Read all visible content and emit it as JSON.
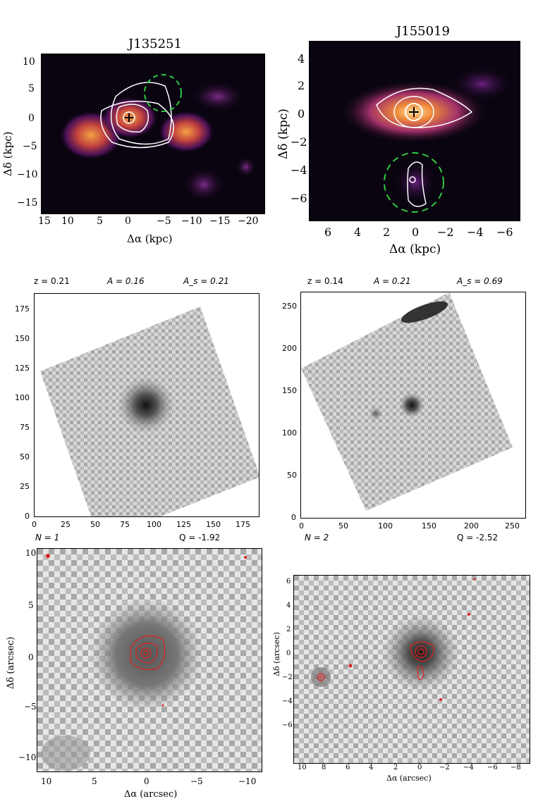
{
  "panels": {
    "top_left": {
      "title": "J135251",
      "xlabel": "Δα (kpc)",
      "ylabel": "Δδ (kpc)",
      "xticks": [
        "15",
        "10",
        "5",
        "0",
        "−5",
        "−10",
        "−15",
        "−20"
      ],
      "yticks": [
        "10",
        "5",
        "0",
        "−5",
        "−10",
        "−15"
      ]
    },
    "top_right": {
      "title": "J155019",
      "xlabel": "Δα (kpc)",
      "ylabel": "Δδ (kpc)",
      "xticks": [
        "6",
        "4",
        "2",
        "0",
        "−2",
        "−4",
        "−6"
      ],
      "yticks": [
        "4",
        "2",
        "0",
        "−2",
        "−4",
        "−6"
      ]
    },
    "mid_left": {
      "z": "z = 0.21",
      "A": "A = 0.16",
      "As": "A_s = 0.21",
      "xticks": [
        "0",
        "25",
        "50",
        "75",
        "100",
        "125",
        "150",
        "175"
      ],
      "yticks": [
        "0",
        "25",
        "50",
        "75",
        "100",
        "125",
        "150",
        "175"
      ]
    },
    "mid_right": {
      "z": "z = 0.14",
      "A": "A = 0.21",
      "As": "A_s = 0.69",
      "xticks": [
        "0",
        "50",
        "100",
        "150",
        "200",
        "250"
      ],
      "yticks": [
        "0",
        "50",
        "100",
        "150",
        "200",
        "250"
      ]
    },
    "bot_left": {
      "N": "N = 1",
      "Q": "Q = -1.92",
      "xlabel": "Δα (arcsec)",
      "ylabel": "Δδ (arcsec)",
      "xticks": [
        "10",
        "5",
        "0",
        "−5",
        "−10"
      ],
      "yticks": [
        "10",
        "5",
        "0",
        "−5",
        "−10"
      ]
    },
    "bot_right": {
      "N": "N = 2",
      "Q": "Q = -2.52",
      "xlabel": "Δα (arcsec)",
      "ylabel": "Δδ (arcsec)",
      "xticks": [
        "10",
        "8",
        "6",
        "4",
        "2",
        "0",
        "−2",
        "−4",
        "−6",
        "−8"
      ],
      "yticks": [
        "6",
        "4",
        "2",
        "0",
        "−2",
        "−4",
        "−6"
      ]
    }
  },
  "colors": {
    "heat_bg": "#0a0410",
    "heat_mid": "#7a1f7a",
    "heat_hot": "#f08a3a",
    "contour_white": "#ffffff",
    "dashed_green": "#2ecc40",
    "contour_red": "#e02020",
    "gray_dark": "#1a1a1a"
  }
}
